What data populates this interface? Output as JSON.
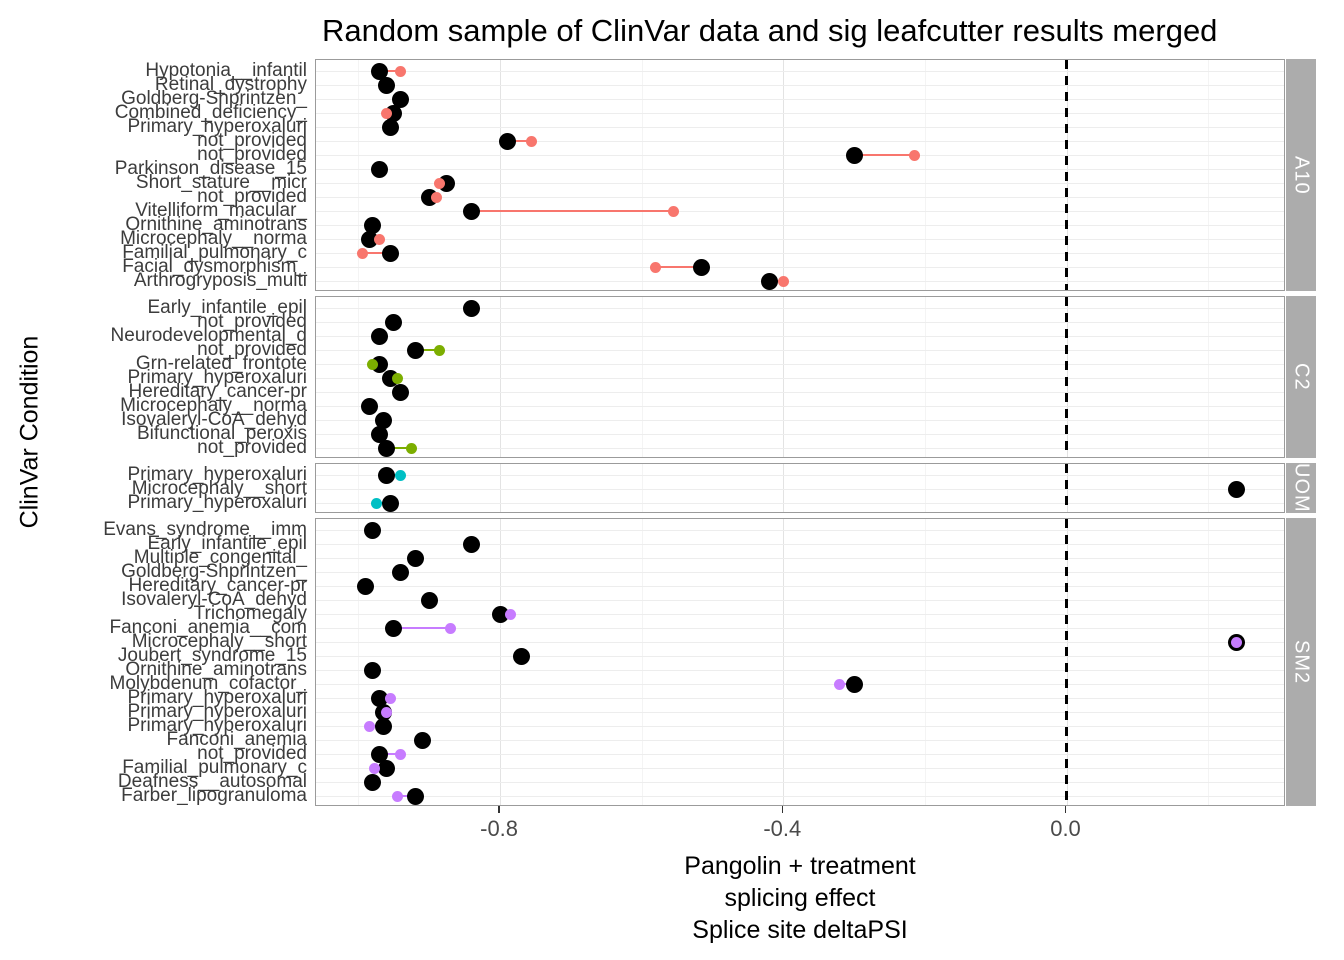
{
  "title": "Random sample of ClinVar data and sig leafcutter results merged",
  "y_axis_title": "ClinVar Condition",
  "x_axis_title_lines": [
    "Pangolin + treatment",
    "splicing effect",
    "Splice site deltaPSI"
  ],
  "chart_data": {
    "type": "scatter",
    "subtype": "faceted horizontal dot plot with black baseline point and facet-colored treatment point per row",
    "xlim": [
      -1.06,
      0.31
    ],
    "x_ticks": [
      -0.8,
      -0.4,
      0.0
    ],
    "x_tick_labels": [
      "-0.8",
      "-0.4",
      "0.0"
    ],
    "x_minor_ticks": [
      -1.0,
      -0.6,
      -0.2,
      0.2
    ],
    "reference_line_x": 0.0,
    "grid": true,
    "legend": "none",
    "facets": [
      {
        "label": "A10",
        "color": "#F8766D",
        "rows": [
          {
            "condition": "Hypotonia__infantil",
            "black_x": -0.97,
            "treat_x": -0.94
          },
          {
            "condition": "Retinal_dystrophy",
            "black_x": -0.96,
            "treat_x": null
          },
          {
            "condition": "Goldberg-Shprintzen_",
            "black_x": -0.94,
            "treat_x": null
          },
          {
            "condition": "Combined_deficiency_",
            "black_x": -0.95,
            "treat_x": -0.96
          },
          {
            "condition": "Primary_hyperoxaluri",
            "black_x": -0.955,
            "treat_x": null
          },
          {
            "condition": "not_provided",
            "black_x": -0.79,
            "treat_x": -0.755
          },
          {
            "condition": "not_provided",
            "black_x": -0.3,
            "treat_x": -0.215
          },
          {
            "condition": "Parkinson_disease_15",
            "black_x": -0.97,
            "treat_x": null
          },
          {
            "condition": "Short_stature__micr",
            "black_x": -0.875,
            "treat_x": -0.885
          },
          {
            "condition": "not_provided",
            "black_x": -0.9,
            "treat_x": -0.89
          },
          {
            "condition": "Vitelliform_macular_",
            "black_x": -0.84,
            "treat_x": -0.555
          },
          {
            "condition": "Ornithine_aminotrans",
            "black_x": -0.98,
            "treat_x": null
          },
          {
            "condition": "Microcephaly__norma",
            "black_x": -0.985,
            "treat_x": -0.97
          },
          {
            "condition": "Familial_pulmonary_c",
            "black_x": -0.955,
            "treat_x": -0.995
          },
          {
            "condition": "Facial_dysmorphism_",
            "black_x": -0.515,
            "treat_x": -0.58
          },
          {
            "condition": "Arthrogryposis_multi",
            "black_x": -0.42,
            "treat_x": -0.4
          }
        ]
      },
      {
        "label": "C2",
        "color": "#7CAE00",
        "rows": [
          {
            "condition": "Early_infantile_epil",
            "black_x": -0.84,
            "treat_x": null
          },
          {
            "condition": "not_provided",
            "black_x": -0.95,
            "treat_x": null
          },
          {
            "condition": "Neurodevelopmental_d",
            "black_x": -0.97,
            "treat_x": null
          },
          {
            "condition": "not_provided",
            "black_x": -0.92,
            "treat_x": -0.885
          },
          {
            "condition": "Grn-related_frontote",
            "black_x": -0.97,
            "treat_x": -0.98
          },
          {
            "condition": "Primary_hyperoxaluri",
            "black_x": -0.955,
            "treat_x": -0.945
          },
          {
            "condition": "Hereditary_cancer-pr",
            "black_x": -0.94,
            "treat_x": null
          },
          {
            "condition": "Microcephaly__norma",
            "black_x": -0.985,
            "treat_x": null
          },
          {
            "condition": "Isovaleryl-CoA_dehyd",
            "black_x": -0.965,
            "treat_x": null
          },
          {
            "condition": "Bifunctional_peroxis",
            "black_x": -0.97,
            "treat_x": null
          },
          {
            "condition": "not_provided",
            "black_x": -0.96,
            "treat_x": -0.925
          }
        ]
      },
      {
        "label": "UOM",
        "color": "#00BFC4",
        "rows": [
          {
            "condition": "Primary_hyperoxaluri",
            "black_x": -0.96,
            "treat_x": -0.94
          },
          {
            "condition": "Microcephaly__short",
            "black_x": 0.24,
            "treat_x": null
          },
          {
            "condition": "Primary_hyperoxaluri",
            "black_x": -0.955,
            "treat_x": -0.975
          }
        ]
      },
      {
        "label": "SM2",
        "color": "#C77CFF",
        "rows": [
          {
            "condition": "Evans_syndrome__imm",
            "black_x": -0.98,
            "treat_x": null
          },
          {
            "condition": "Early_infantile_epil",
            "black_x": -0.84,
            "treat_x": null
          },
          {
            "condition": "Multiple_congenital_",
            "black_x": -0.92,
            "treat_x": null
          },
          {
            "condition": "Goldberg-Shprintzen_",
            "black_x": -0.94,
            "treat_x": null
          },
          {
            "condition": "Hereditary_cancer-pr",
            "black_x": -0.99,
            "treat_x": null
          },
          {
            "condition": "Isovaleryl-CoA_dehyd",
            "black_x": -0.9,
            "treat_x": null
          },
          {
            "condition": "Trichomegaly",
            "black_x": -0.8,
            "treat_x": -0.785
          },
          {
            "condition": "Fanconi_anemia__com",
            "black_x": -0.95,
            "treat_x": -0.87
          },
          {
            "condition": "Microcephaly__short",
            "black_x": 0.24,
            "treat_x": 0.24
          },
          {
            "condition": "Joubert_syndrome_15",
            "black_x": -0.77,
            "treat_x": null
          },
          {
            "condition": "Ornithine_aminotrans",
            "black_x": -0.98,
            "treat_x": null
          },
          {
            "condition": "Molybdenum_cofactor_",
            "black_x": -0.3,
            "treat_x": -0.32
          },
          {
            "condition": "Primary_hyperoxaluri",
            "black_x": -0.97,
            "treat_x": -0.955
          },
          {
            "condition": "Primary_hyperoxaluri",
            "black_x": -0.965,
            "treat_x": -0.96
          },
          {
            "condition": "Primary_hyperoxaluri",
            "black_x": -0.965,
            "treat_x": -0.985
          },
          {
            "condition": "Fanconi_anemia",
            "black_x": -0.91,
            "treat_x": null
          },
          {
            "condition": "not_provided",
            "black_x": -0.97,
            "treat_x": -0.94
          },
          {
            "condition": "Familial_pulmonary_c",
            "black_x": -0.96,
            "treat_x": -0.978
          },
          {
            "condition": "Deafness__autosomal",
            "black_x": -0.98,
            "treat_x": null
          },
          {
            "condition": "Farber_lipogranuloma",
            "black_x": -0.92,
            "treat_x": -0.945
          }
        ]
      }
    ]
  }
}
